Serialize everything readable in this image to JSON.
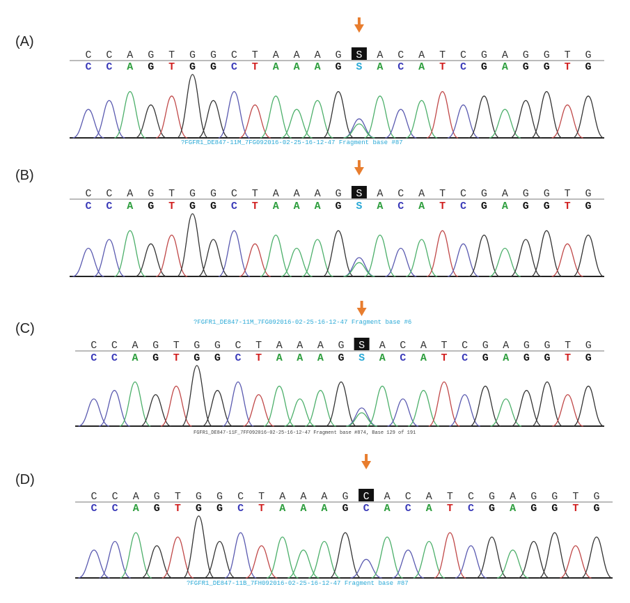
{
  "panels": [
    {
      "label": "(A)",
      "bases": [
        "C",
        "C",
        "A",
        "G",
        "T",
        "G",
        "G",
        "C",
        "T",
        "A",
        "A",
        "A",
        "G",
        "S",
        "A",
        "C",
        "A",
        "T",
        "C",
        "G",
        "A",
        "G",
        "G",
        "T",
        "G"
      ],
      "highlight": 13,
      "footer": "?FGFR1_DE847-11M_7FG092016-02-25-16-12-47 Fragment base #87"
    },
    {
      "label": "(B)",
      "bases": [
        "C",
        "C",
        "A",
        "G",
        "T",
        "G",
        "G",
        "C",
        "T",
        "A",
        "A",
        "A",
        "G",
        "S",
        "A",
        "C",
        "A",
        "T",
        "C",
        "G",
        "A",
        "G",
        "G",
        "T",
        "G"
      ],
      "highlight": 13
    },
    {
      "label": "(C)",
      "bases": [
        "C",
        "C",
        "A",
        "G",
        "T",
        "G",
        "G",
        "C",
        "T",
        "A",
        "A",
        "A",
        "G",
        "S",
        "A",
        "C",
        "A",
        "T",
        "C",
        "G",
        "A",
        "G",
        "G",
        "T",
        "G"
      ],
      "highlight": 13,
      "header": "?FGFR1_DE847-11M_7FG092016-02-25-16-12-47 Fragment base #6",
      "footer": "FGFR1_DE847-11F_7FF092016-02-25-16-12-47 Fragment base #874, Base 129 of 191"
    },
    {
      "label": "(D)",
      "bases": [
        "C",
        "C",
        "A",
        "G",
        "T",
        "G",
        "G",
        "C",
        "T",
        "A",
        "A",
        "A",
        "G",
        "C",
        "A",
        "C",
        "A",
        "T",
        "C",
        "G",
        "A",
        "G",
        "G",
        "T",
        "G"
      ],
      "highlight": 13,
      "footer": "?FGFR1_DE847-11B_7FH092016-02-25-16-12-47 Fragment base #87"
    }
  ]
}
